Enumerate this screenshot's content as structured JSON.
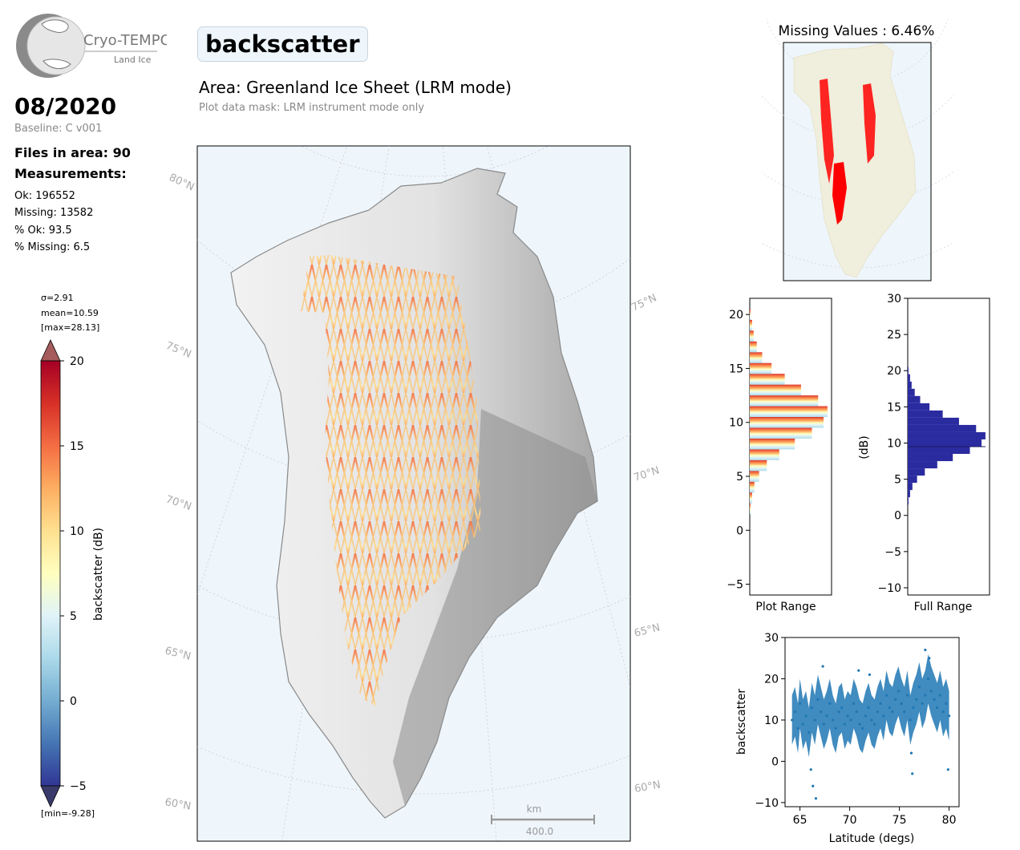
{
  "logo": {
    "name": "Cryo-TEMPO",
    "subtitle": "Land Ice"
  },
  "header": {
    "date": "08/2020",
    "baseline": "Baseline: C v001",
    "files": "Files in area: 90",
    "measurements_label": "Measurements:",
    "stats": [
      "Ok: 196552",
      "Missing: 13582",
      "% Ok: 93.5",
      "% Missing: 6.5"
    ]
  },
  "main": {
    "variable": "backscatter",
    "area": "Area: Greenland Ice Sheet (LRM mode)",
    "mask": "Plot data mask: LRM instrument mode only"
  },
  "colorbar": {
    "sigma": "σ=2.91",
    "mean": "mean=10.59",
    "max": "[max=28.13]",
    "min": "[min=-9.28]",
    "label": "backscatter (dB)",
    "ticks": [
      "20",
      "15",
      "10",
      "5",
      "0",
      "−5"
    ],
    "colors": [
      "#313695",
      "#4575b4",
      "#74add1",
      "#abd9e9",
      "#e0f3f8",
      "#ffffbf",
      "#fee090",
      "#fdae61",
      "#f46d43",
      "#d73027",
      "#a50026"
    ]
  },
  "map": {
    "lat_labels_left": [
      "80°N",
      "75°N",
      "70°N",
      "65°N",
      "60°N"
    ],
    "lat_labels_right": [
      "75°N",
      "70°N",
      "65°N",
      "60°N"
    ],
    "scale_unit": "km",
    "scale_value": "400.0",
    "ocean_color": "#eef6fc"
  },
  "missing": {
    "title": "Missing Values : 6.46%",
    "point_color": "#ff0000",
    "land_color": "#f0eedc"
  },
  "chart_data": [
    {
      "type": "bar",
      "orientation": "horizontal",
      "title": "",
      "xlabel": "Plot Range",
      "ylabel": "",
      "ylim": [
        -6,
        21.5
      ],
      "yticks": [
        -5,
        0,
        5,
        10,
        15,
        20
      ],
      "bin_centers": [
        2,
        3,
        4,
        5,
        6,
        7,
        8,
        9,
        10,
        11,
        12,
        13,
        14,
        15,
        16,
        17,
        18,
        19,
        20
      ],
      "counts": [
        1,
        3,
        6,
        12,
        22,
        38,
        58,
        80,
        95,
        100,
        88,
        66,
        45,
        28,
        16,
        9,
        5,
        3,
        1
      ],
      "colormap": "RdYlBu_r"
    },
    {
      "type": "bar",
      "orientation": "horizontal",
      "title": "",
      "xlabel": "Full Range",
      "ylabel": "(dB)",
      "ylim": [
        -11,
        30
      ],
      "yticks": [
        -10,
        -5,
        0,
        5,
        10,
        15,
        20,
        25,
        30
      ],
      "bin_centers": [
        2,
        3,
        4,
        5,
        6,
        7,
        8,
        9,
        10,
        11,
        12,
        13,
        14,
        15,
        16,
        17,
        18,
        19,
        20
      ],
      "counts": [
        1,
        3,
        6,
        12,
        22,
        38,
        58,
        80,
        95,
        100,
        88,
        66,
        45,
        28,
        16,
        9,
        5,
        3,
        1
      ],
      "mean_line": 9.5,
      "color": "#2b2ba0"
    },
    {
      "type": "scatter",
      "title": "",
      "xlabel": "Latitude (degs)",
      "ylabel": "backscatter",
      "xlim": [
        63.5,
        81
      ],
      "ylim": [
        -11,
        30
      ],
      "xticks": [
        65,
        70,
        75,
        80
      ],
      "yticks": [
        -10,
        0,
        10,
        20,
        30
      ],
      "color": "#1f77b4",
      "x": [
        64.2,
        64.5,
        64.8,
        65.0,
        65.3,
        65.6,
        65.9,
        66.2,
        66.5,
        66.8,
        67.1,
        67.4,
        67.7,
        68.0,
        68.3,
        68.6,
        68.9,
        69.2,
        69.5,
        69.8,
        70.1,
        70.4,
        70.7,
        71.0,
        71.3,
        71.6,
        71.9,
        72.2,
        72.5,
        72.8,
        73.1,
        73.4,
        73.7,
        74.0,
        74.3,
        74.6,
        74.9,
        75.2,
        75.5,
        75.8,
        76.1,
        76.4,
        76.7,
        77.0,
        77.3,
        77.6,
        77.9,
        78.2,
        78.5,
        78.8,
        79.1,
        79.4,
        79.7,
        80.0,
        66.1,
        66.3,
        66.6,
        67.3,
        70.9,
        72.0,
        76.2,
        76.3,
        77.6,
        78.0,
        79.9
      ],
      "y": [
        10,
        12,
        8,
        14,
        9,
        11,
        7,
        13,
        10,
        15,
        12,
        9,
        11,
        14,
        10,
        8,
        12,
        13,
        9,
        11,
        10,
        14,
        12,
        9,
        8,
        11,
        13,
        10,
        9,
        12,
        14,
        11,
        16,
        13,
        12,
        15,
        17,
        14,
        12,
        16,
        10,
        13,
        15,
        18,
        14,
        16,
        20,
        17,
        15,
        13,
        16,
        12,
        14,
        11,
        -2,
        -6,
        -9,
        23,
        22,
        21,
        2,
        -3,
        27,
        25,
        -2
      ]
    }
  ]
}
